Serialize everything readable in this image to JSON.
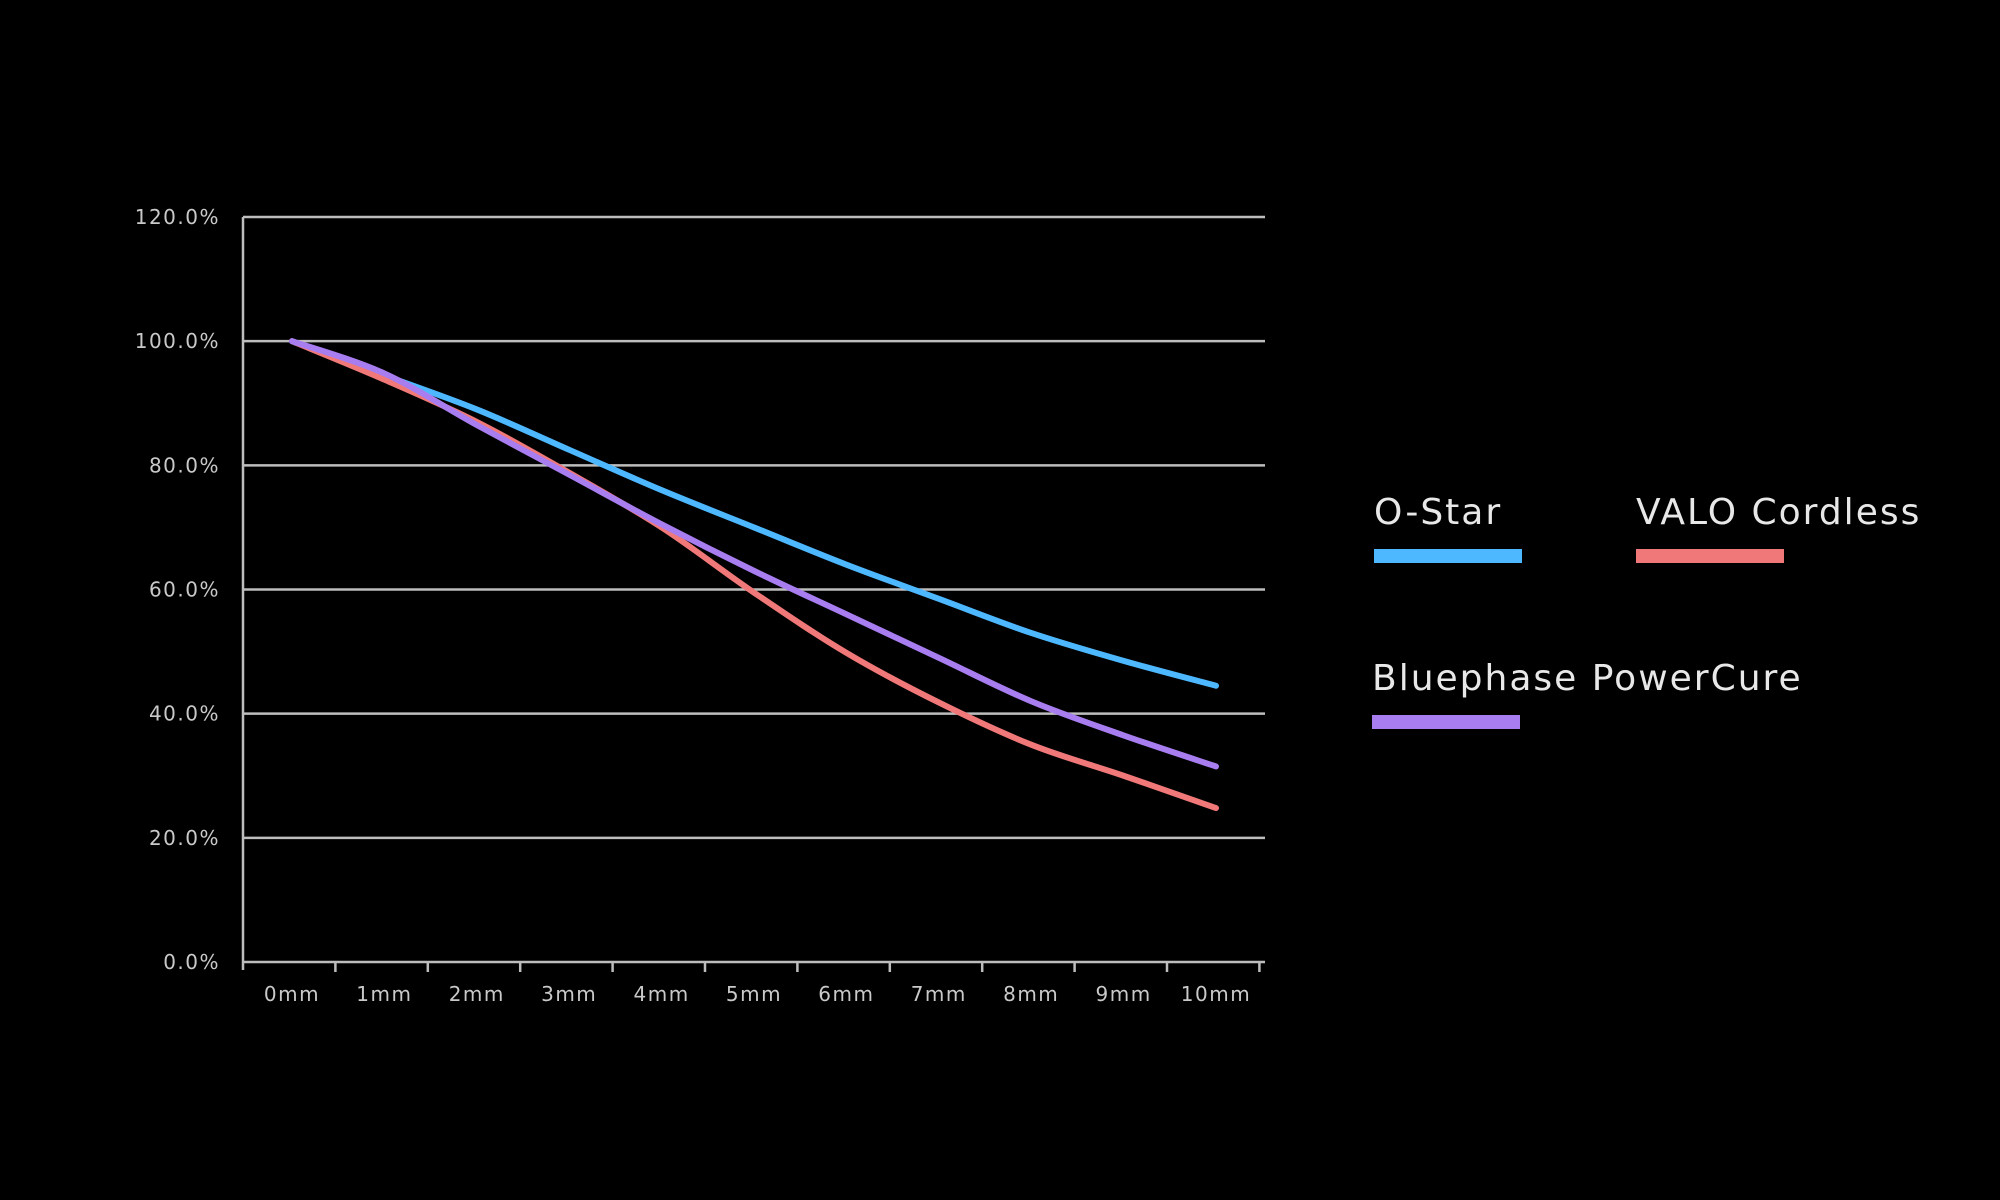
{
  "chart_data": {
    "type": "line",
    "title": "",
    "xlabel": "",
    "ylabel": "",
    "categories": [
      "0mm",
      "1mm",
      "2mm",
      "3mm",
      "4mm",
      "5mm",
      "6mm",
      "7mm",
      "8mm",
      "9mm",
      "10mm"
    ],
    "y_tick_labels": [
      "0.0%",
      "20.0%",
      "40.0%",
      "60.0%",
      "80.0%",
      "100.0%",
      "120.0%"
    ],
    "ylim": [
      0,
      120
    ],
    "y_unit": "%",
    "grid": true,
    "legend_position": "right",
    "series": [
      {
        "name": "O-Star",
        "color": "#4db8ff",
        "values": [
          100,
          94.5,
          89.0,
          82.5,
          76.0,
          70.0,
          64.0,
          58.5,
          53.0,
          48.5,
          44.5
        ]
      },
      {
        "name": "VALO Cordless",
        "color": "#f07878",
        "values": [
          100,
          93.8,
          87.0,
          78.8,
          70.0,
          59.5,
          49.8,
          41.8,
          35.0,
          30.0,
          24.8
        ]
      },
      {
        "name": "Bluephase PowerCure",
        "color": "#a87df0",
        "values": [
          100,
          94.8,
          86.5,
          78.5,
          70.5,
          63.0,
          56.0,
          49.0,
          42.0,
          36.5,
          31.5
        ]
      }
    ]
  }
}
